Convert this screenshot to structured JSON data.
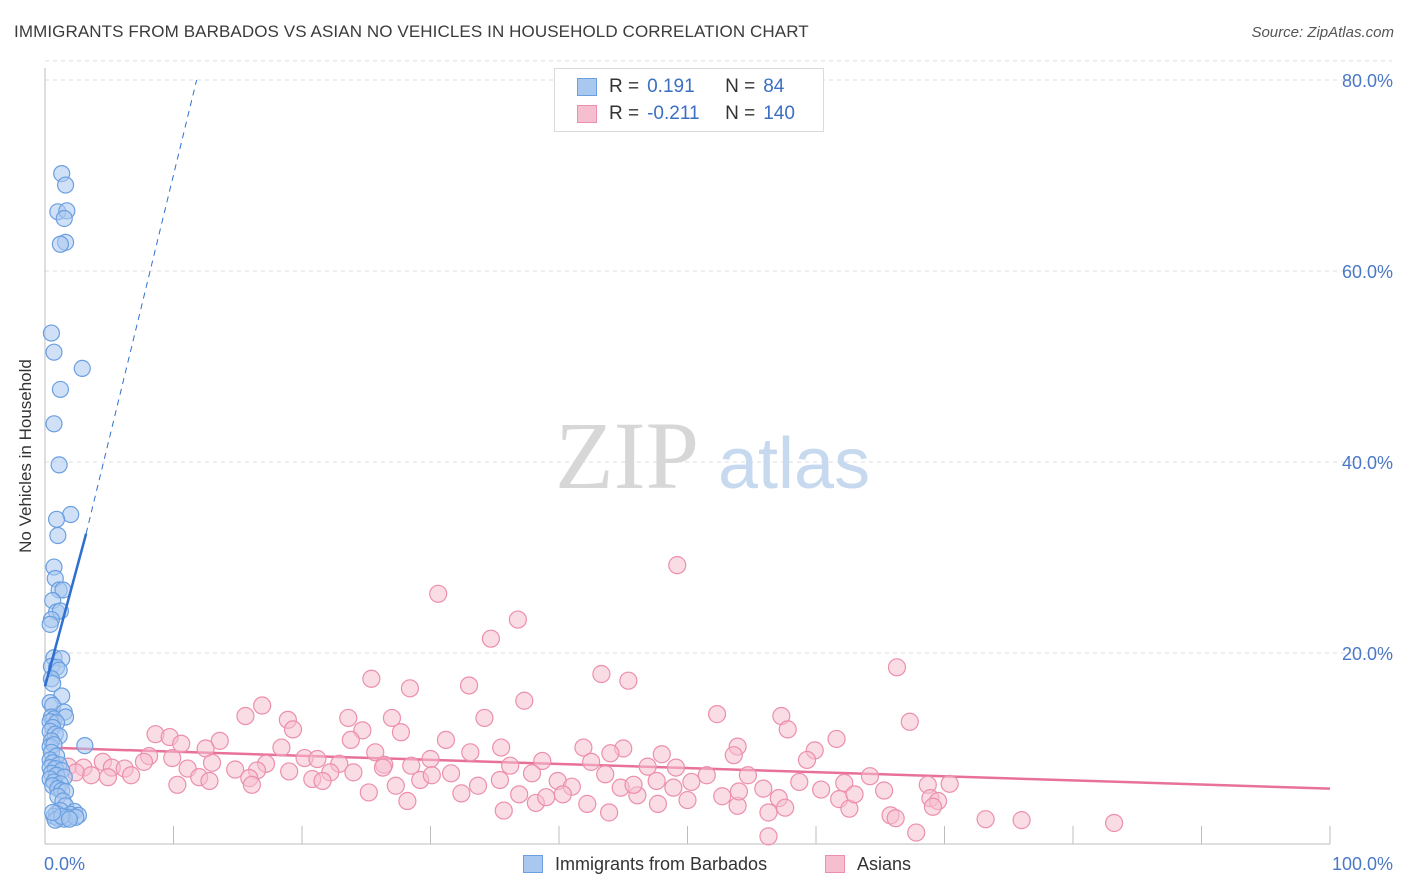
{
  "title": "IMMIGRANTS FROM BARBADOS VS ASIAN NO VEHICLES IN HOUSEHOLD CORRELATION CHART",
  "source": "Source: ZipAtlas.com",
  "watermark": {
    "zip": "ZIP",
    "atlas": "atlas"
  },
  "colors": {
    "blue_fill": "#a9c8f0",
    "blue_stroke": "#6b9fe0",
    "blue_line": "#2f6fd0",
    "pink_fill": "#f6bfd0",
    "pink_stroke": "#ec8fad",
    "pink_line": "#e8719a",
    "tick_label": "#4a78c8",
    "grid": "#dddddd"
  },
  "legend": {
    "rows": [
      {
        "r_label": "R =",
        "r_value": "0.191",
        "n_label": "N =",
        "n_value": "84"
      },
      {
        "r_label": "R =",
        "r_value": "-0.211",
        "n_label": "N =",
        "n_value": "140"
      }
    ]
  },
  "bottom_legend": {
    "series1": "Immigrants from Barbados",
    "series2": "Asians"
  },
  "chart_data": {
    "type": "scatter",
    "title": "IMMIGRANTS FROM BARBADOS VS ASIAN NO VEHICLES IN HOUSEHOLD CORRELATION CHART",
    "xlabel": "",
    "ylabel": "No Vehicles in Household",
    "xlim": [
      0,
      100
    ],
    "ylim": [
      0,
      82
    ],
    "x_tick_labels": [
      "0.0%",
      "100.0%"
    ],
    "y_ticks": [
      20,
      40,
      60,
      80
    ],
    "y_tick_labels": [
      "20.0%",
      "40.0%",
      "60.0%",
      "80.0%"
    ],
    "grid": "horizontal dashed",
    "legend_position": "top-center",
    "series": [
      {
        "name": "Immigrants from Barbados",
        "r": 0.191,
        "n": 84,
        "trend": {
          "x": [
            0,
            3.2
          ],
          "y": [
            16.5,
            32.5
          ],
          "dashed_extension_to": [
            11.8,
            80
          ]
        },
        "points": [
          [
            1.3,
            70.2
          ],
          [
            1.6,
            69.0
          ],
          [
            1.0,
            66.2
          ],
          [
            1.7,
            66.3
          ],
          [
            1.5,
            65.5
          ],
          [
            1.6,
            63.0
          ],
          [
            1.2,
            62.8
          ],
          [
            0.5,
            53.5
          ],
          [
            0.7,
            51.5
          ],
          [
            2.9,
            49.8
          ],
          [
            1.2,
            47.6
          ],
          [
            0.7,
            44.0
          ],
          [
            1.1,
            39.7
          ],
          [
            2.0,
            34.5
          ],
          [
            0.9,
            34.0
          ],
          [
            1.0,
            32.3
          ],
          [
            0.7,
            29.0
          ],
          [
            0.8,
            27.8
          ],
          [
            1.1,
            26.6
          ],
          [
            1.4,
            26.6
          ],
          [
            0.6,
            25.5
          ],
          [
            0.9,
            24.3
          ],
          [
            1.2,
            24.4
          ],
          [
            0.5,
            23.5
          ],
          [
            0.4,
            23.0
          ],
          [
            0.7,
            19.5
          ],
          [
            1.3,
            19.4
          ],
          [
            0.5,
            18.6
          ],
          [
            0.9,
            18.5
          ],
          [
            1.1,
            18.2
          ],
          [
            0.5,
            17.3
          ],
          [
            0.6,
            16.8
          ],
          [
            1.3,
            15.5
          ],
          [
            0.4,
            14.8
          ],
          [
            0.6,
            14.5
          ],
          [
            0.5,
            13.3
          ],
          [
            1.5,
            13.8
          ],
          [
            0.7,
            13.1
          ],
          [
            1.6,
            13.3
          ],
          [
            0.4,
            12.8
          ],
          [
            0.9,
            12.7
          ],
          [
            0.6,
            12.2
          ],
          [
            0.4,
            11.8
          ],
          [
            0.8,
            11.5
          ],
          [
            1.1,
            11.3
          ],
          [
            0.5,
            10.8
          ],
          [
            0.4,
            10.2
          ],
          [
            0.7,
            10.4
          ],
          [
            3.1,
            10.3
          ],
          [
            0.5,
            9.6
          ],
          [
            0.9,
            9.2
          ],
          [
            0.4,
            8.8
          ],
          [
            0.6,
            8.5
          ],
          [
            1.1,
            8.3
          ],
          [
            0.4,
            8.0
          ],
          [
            0.8,
            7.9
          ],
          [
            1.3,
            7.7
          ],
          [
            0.5,
            7.4
          ],
          [
            0.9,
            7.2
          ],
          [
            1.5,
            7.0
          ],
          [
            0.4,
            6.8
          ],
          [
            0.7,
            6.5
          ],
          [
            1.2,
            6.3
          ],
          [
            0.6,
            6.1
          ],
          [
            1.0,
            5.8
          ],
          [
            1.3,
            5.6
          ],
          [
            1.6,
            5.5
          ],
          [
            1.0,
            5.0
          ],
          [
            1.4,
            4.5
          ],
          [
            1.6,
            4.0
          ],
          [
            1.2,
            3.5
          ],
          [
            2.3,
            3.4
          ],
          [
            0.9,
            3.2
          ],
          [
            2.0,
            3.1
          ],
          [
            2.6,
            3.0
          ],
          [
            0.7,
            2.9
          ],
          [
            1.8,
            2.8
          ],
          [
            1.0,
            2.7
          ],
          [
            1.5,
            2.6
          ],
          [
            0.8,
            2.5
          ],
          [
            2.4,
            2.8
          ],
          [
            1.3,
            2.9
          ],
          [
            0.6,
            3.3
          ],
          [
            1.9,
            2.6
          ]
        ]
      },
      {
        "name": "Asians",
        "r": -0.211,
        "n": 140,
        "trend": {
          "x": [
            0,
            100
          ],
          "y": [
            10.1,
            5.8
          ]
        },
        "points": [
          [
            49.2,
            29.2
          ],
          [
            30.6,
            26.2
          ],
          [
            36.8,
            23.5
          ],
          [
            34.7,
            21.5
          ],
          [
            66.3,
            18.5
          ],
          [
            43.3,
            17.8
          ],
          [
            25.4,
            17.3
          ],
          [
            45.4,
            17.1
          ],
          [
            33.0,
            16.6
          ],
          [
            28.4,
            16.3
          ],
          [
            37.3,
            15.0
          ],
          [
            16.9,
            14.5
          ],
          [
            15.6,
            13.4
          ],
          [
            52.3,
            13.6
          ],
          [
            57.3,
            13.4
          ],
          [
            18.9,
            13.0
          ],
          [
            23.6,
            13.2
          ],
          [
            27.0,
            13.2
          ],
          [
            34.2,
            13.2
          ],
          [
            67.3,
            12.8
          ],
          [
            19.3,
            12.0
          ],
          [
            24.7,
            11.9
          ],
          [
            57.8,
            12.0
          ],
          [
            27.7,
            11.7
          ],
          [
            8.6,
            11.5
          ],
          [
            9.7,
            11.2
          ],
          [
            61.6,
            11.0
          ],
          [
            23.8,
            10.9
          ],
          [
            31.2,
            10.9
          ],
          [
            13.6,
            10.8
          ],
          [
            10.6,
            10.5
          ],
          [
            53.9,
            10.2
          ],
          [
            12.5,
            10.0
          ],
          [
            18.4,
            10.1
          ],
          [
            35.5,
            10.1
          ],
          [
            41.9,
            10.1
          ],
          [
            45.0,
            10.0
          ],
          [
            59.9,
            9.8
          ],
          [
            25.7,
            9.6
          ],
          [
            33.1,
            9.6
          ],
          [
            44.0,
            9.5
          ],
          [
            48.0,
            9.4
          ],
          [
            53.6,
            9.3
          ],
          [
            8.1,
            9.2
          ],
          [
            9.9,
            9.0
          ],
          [
            20.2,
            9.0
          ],
          [
            21.2,
            8.9
          ],
          [
            30.0,
            8.9
          ],
          [
            38.7,
            8.7
          ],
          [
            42.5,
            8.6
          ],
          [
            59.3,
            8.8
          ],
          [
            4.5,
            8.6
          ],
          [
            7.7,
            8.6
          ],
          [
            13.0,
            8.5
          ],
          [
            17.2,
            8.4
          ],
          [
            22.9,
            8.4
          ],
          [
            26.4,
            8.3
          ],
          [
            28.5,
            8.2
          ],
          [
            36.2,
            8.2
          ],
          [
            46.9,
            8.1
          ],
          [
            49.1,
            8.0
          ],
          [
            1.8,
            8.1
          ],
          [
            3.0,
            8.0
          ],
          [
            5.2,
            8.0
          ],
          [
            6.2,
            7.9
          ],
          [
            11.1,
            7.9
          ],
          [
            14.8,
            7.8
          ],
          [
            16.5,
            7.7
          ],
          [
            19.0,
            7.6
          ],
          [
            22.2,
            7.5
          ],
          [
            24.0,
            7.5
          ],
          [
            31.6,
            7.4
          ],
          [
            37.9,
            7.4
          ],
          [
            43.6,
            7.3
          ],
          [
            51.5,
            7.2
          ],
          [
            54.7,
            7.2
          ],
          [
            64.2,
            7.1
          ],
          [
            2.4,
            7.5
          ],
          [
            3.6,
            7.2
          ],
          [
            4.9,
            7.0
          ],
          [
            6.7,
            7.2
          ],
          [
            12.0,
            7.0
          ],
          [
            15.9,
            6.9
          ],
          [
            20.8,
            6.8
          ],
          [
            29.2,
            6.7
          ],
          [
            35.4,
            6.7
          ],
          [
            39.9,
            6.6
          ],
          [
            47.6,
            6.6
          ],
          [
            50.3,
            6.5
          ],
          [
            58.7,
            6.5
          ],
          [
            62.2,
            6.4
          ],
          [
            68.7,
            6.2
          ],
          [
            70.4,
            6.3
          ],
          [
            10.3,
            6.2
          ],
          [
            27.3,
            6.1
          ],
          [
            33.7,
            6.1
          ],
          [
            41.0,
            6.0
          ],
          [
            44.8,
            5.9
          ],
          [
            48.9,
            5.9
          ],
          [
            55.9,
            5.8
          ],
          [
            60.4,
            5.7
          ],
          [
            65.3,
            5.6
          ],
          [
            25.2,
            5.4
          ],
          [
            32.4,
            5.3
          ],
          [
            36.9,
            5.2
          ],
          [
            40.3,
            5.2
          ],
          [
            46.1,
            5.1
          ],
          [
            52.7,
            5.0
          ],
          [
            57.1,
            4.8
          ],
          [
            61.8,
            4.7
          ],
          [
            68.9,
            4.8
          ],
          [
            69.5,
            4.5
          ],
          [
            28.2,
            4.5
          ],
          [
            38.2,
            4.3
          ],
          [
            42.2,
            4.2
          ],
          [
            53.9,
            4.0
          ],
          [
            57.6,
            3.8
          ],
          [
            62.6,
            3.7
          ],
          [
            69.1,
            3.9
          ],
          [
            35.7,
            3.5
          ],
          [
            43.9,
            3.3
          ],
          [
            56.3,
            3.3
          ],
          [
            65.8,
            3.0
          ],
          [
            73.2,
            2.6
          ],
          [
            76.0,
            2.5
          ],
          [
            83.2,
            2.2
          ],
          [
            66.2,
            2.7
          ],
          [
            67.8,
            1.2
          ],
          [
            56.3,
            0.8
          ],
          [
            47.7,
            4.2
          ],
          [
            39.0,
            4.9
          ],
          [
            21.6,
            6.6
          ],
          [
            30.1,
            7.2
          ],
          [
            45.8,
            6.2
          ],
          [
            50.0,
            4.6
          ],
          [
            26.3,
            8.0
          ],
          [
            16.1,
            6.2
          ],
          [
            12.8,
            6.6
          ],
          [
            54.0,
            5.5
          ],
          [
            63.0,
            5.2
          ]
        ]
      }
    ]
  }
}
